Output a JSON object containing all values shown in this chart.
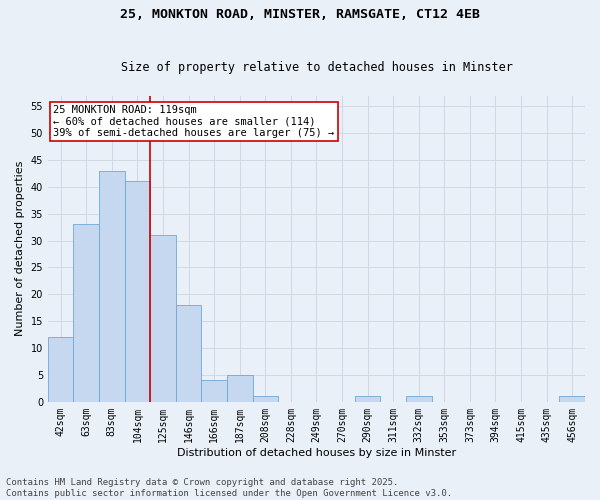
{
  "title1": "25, MONKTON ROAD, MINSTER, RAMSGATE, CT12 4EB",
  "title2": "Size of property relative to detached houses in Minster",
  "xlabel": "Distribution of detached houses by size in Minster",
  "ylabel": "Number of detached properties",
  "categories": [
    "42sqm",
    "63sqm",
    "83sqm",
    "104sqm",
    "125sqm",
    "146sqm",
    "166sqm",
    "187sqm",
    "208sqm",
    "228sqm",
    "249sqm",
    "270sqm",
    "290sqm",
    "311sqm",
    "332sqm",
    "353sqm",
    "373sqm",
    "394sqm",
    "415sqm",
    "435sqm",
    "456sqm"
  ],
  "values": [
    12,
    33,
    43,
    41,
    31,
    18,
    4,
    5,
    1,
    0,
    0,
    0,
    1,
    0,
    1,
    0,
    0,
    0,
    0,
    0,
    1
  ],
  "bar_color": "#c5d8f0",
  "bar_edge_color": "#6fa8d6",
  "grid_color": "#d0d8e8",
  "background_color": "#eaf0f8",
  "vline_index": 4,
  "vline_color": "#cc0000",
  "annotation_text": "25 MONKTON ROAD: 119sqm\n← 60% of detached houses are smaller (114)\n39% of semi-detached houses are larger (75) →",
  "annotation_box_color": "#ffffff",
  "annotation_box_edge": "#cc0000",
  "ylim": [
    0,
    57
  ],
  "yticks": [
    0,
    5,
    10,
    15,
    20,
    25,
    30,
    35,
    40,
    45,
    50,
    55
  ],
  "footnote": "Contains HM Land Registry data © Crown copyright and database right 2025.\nContains public sector information licensed under the Open Government Licence v3.0.",
  "title_fontsize": 9.5,
  "subtitle_fontsize": 8.5,
  "axis_label_fontsize": 8,
  "tick_fontsize": 7,
  "annotation_fontsize": 7.5,
  "footnote_fontsize": 6.5
}
